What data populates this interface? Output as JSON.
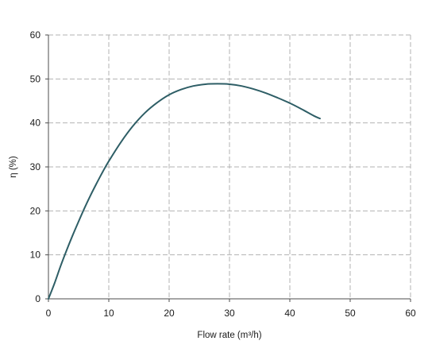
{
  "chart_data": {
    "type": "line",
    "title": "",
    "xlabel": "Flow rate (m³/h)",
    "ylabel": "η (%)",
    "xlim": [
      0,
      60
    ],
    "ylim": [
      0,
      60
    ],
    "xticks": [
      0,
      10,
      20,
      30,
      40,
      50,
      60
    ],
    "yticks": [
      0,
      10,
      20,
      30,
      40,
      50,
      60
    ],
    "xtick_labels": [
      "0",
      "10",
      "20",
      "30",
      "40",
      "50",
      "60"
    ],
    "ytick_labels": [
      "0",
      "10",
      "20",
      "30",
      "40",
      "50",
      "60"
    ],
    "grid": true,
    "legend": "none",
    "series": [
      {
        "color": "#2e5e66",
        "x": [
          0,
          1,
          2,
          3,
          4,
          5,
          6,
          7,
          8,
          9,
          10,
          12,
          14,
          16,
          18,
          20,
          22,
          24,
          26,
          28,
          30,
          32,
          34,
          36,
          38,
          40,
          42,
          44,
          45
        ],
        "y": [
          0,
          3.5,
          7.4,
          11,
          14.4,
          17.6,
          20.7,
          23.6,
          26.3,
          28.9,
          31.3,
          35.6,
          39.3,
          42.3,
          44.6,
          46.4,
          47.6,
          48.4,
          48.8,
          48.9,
          48.8,
          48.4,
          47.7,
          46.8,
          45.7,
          44.5,
          43.1,
          41.6,
          41
        ]
      }
    ]
  }
}
